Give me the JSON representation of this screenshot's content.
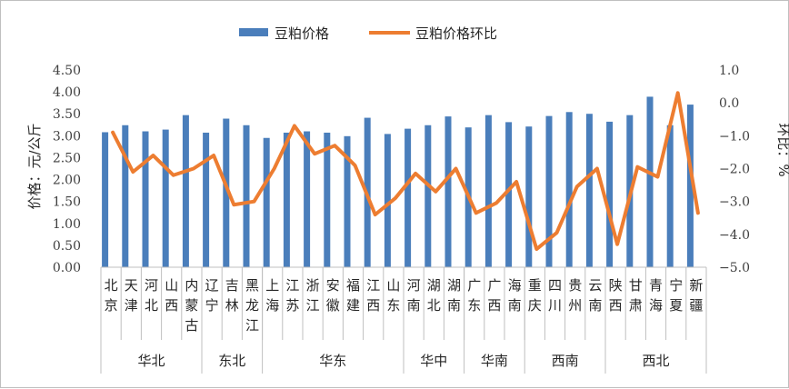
{
  "chart_data": {
    "type": "bar",
    "legend": {
      "placement": "top",
      "items": [
        {
          "name": "豆粕价格",
          "kind": "bar",
          "color": "#4a7ebb"
        },
        {
          "name": "豆粕价格环比",
          "kind": "line",
          "color": "#ed7d31"
        }
      ]
    },
    "y_left": {
      "label": "价格：元/公斤",
      "range": [
        0,
        4.5
      ],
      "ticks": [
        "0.00",
        "0.50",
        "1.00",
        "1.50",
        "2.00",
        "2.50",
        "3.00",
        "3.50",
        "4.00",
        "4.50"
      ]
    },
    "y_right": {
      "label": "环比：%",
      "range": [
        -5.0,
        1.0
      ],
      "ticks": [
        "1.0",
        "0.0",
        "−1.0",
        "−2.0",
        "−3.0",
        "−4.0",
        "−5.0"
      ],
      "negative_tick_color": "#e8312f"
    },
    "categories": [
      "北京",
      "天津",
      "河北",
      "山西",
      "内蒙古",
      "辽宁",
      "吉林",
      "黑龙江",
      "上海",
      "江苏",
      "浙江",
      "安徽",
      "福建",
      "江西",
      "山东",
      "河南",
      "湖北",
      "湖南",
      "广东",
      "广西",
      "海南",
      "重庆",
      "四川",
      "贵州",
      "云南",
      "陕西",
      "甘肃",
      "青海",
      "宁夏",
      "新疆"
    ],
    "regions": [
      {
        "name": "华北",
        "count": 5
      },
      {
        "name": "东北",
        "count": 3
      },
      {
        "name": "华东",
        "count": 7
      },
      {
        "name": "华中",
        "count": 3
      },
      {
        "name": "华南",
        "count": 3
      },
      {
        "name": "西南",
        "count": 4
      },
      {
        "name": "西北",
        "count": 5
      }
    ],
    "series": [
      {
        "name": "豆粕价格",
        "type": "bar",
        "axis": "left",
        "color": "#4a7ebb",
        "values": [
          3.08,
          3.24,
          3.1,
          3.14,
          3.47,
          3.07,
          3.39,
          3.24,
          2.95,
          3.07,
          3.1,
          3.07,
          2.99,
          3.41,
          3.04,
          3.16,
          3.24,
          3.44,
          3.19,
          3.47,
          3.31,
          3.21,
          3.45,
          3.54,
          3.5,
          3.32,
          3.47,
          3.89,
          3.24,
          3.71
        ]
      },
      {
        "name": "豆粕价格环比",
        "type": "line",
        "axis": "right",
        "color": "#ed7d31",
        "values": [
          -0.9,
          -2.1,
          -1.6,
          -2.2,
          -2.0,
          -1.6,
          -3.1,
          -3.0,
          -2.0,
          -0.7,
          -1.55,
          -1.3,
          -1.9,
          -3.4,
          -2.9,
          -2.15,
          -2.7,
          -2.0,
          -3.35,
          -3.05,
          -2.4,
          -4.45,
          -3.95,
          -2.55,
          -2.0,
          -4.3,
          -1.95,
          -2.25,
          0.3,
          -3.35
        ]
      }
    ],
    "grid": false
  }
}
